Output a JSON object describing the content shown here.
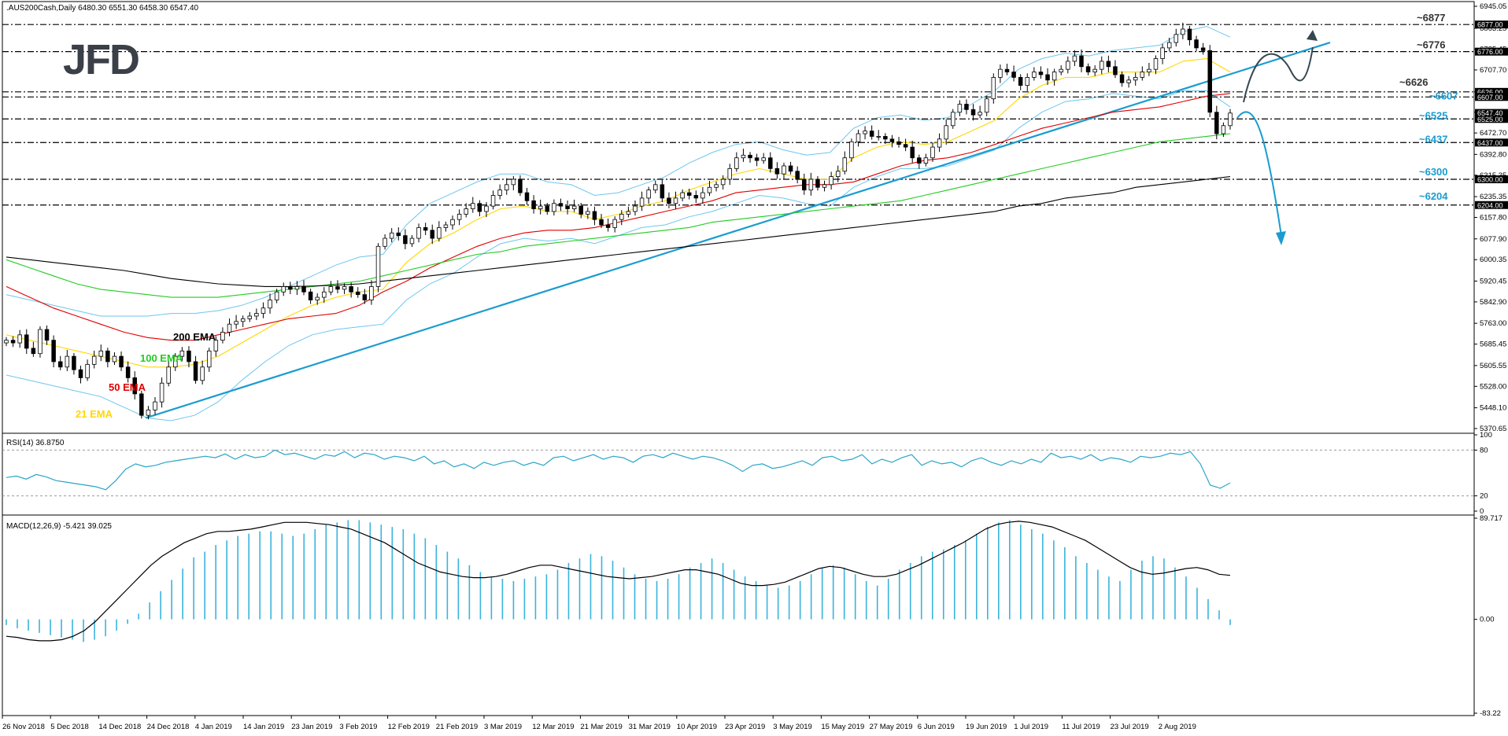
{
  "header": {
    "symbol_line": ".AUS200Cash,Daily  6480.30 6551.30 6458.30 6547.40",
    "logo_text": "JFD"
  },
  "colors": {
    "background": "#ffffff",
    "bull_candle": "#ffffff",
    "bear_candle": "#000000",
    "candle_outline": "#000000",
    "ema21": "#ffd800",
    "ema50": "#e00000",
    "ema100": "#22cc22",
    "ema200": "#000000",
    "bollinger": "#6ec6ee",
    "trendline": "#1a9cd0",
    "level_line": "#000000",
    "annotation_blue": "#1a9cd0",
    "annotation_dark": "#333333",
    "rsi_line": "#2aa5c8",
    "macd_hist": "#3ab3dd",
    "macd_signal": "#000000",
    "logo": "#3a3f48"
  },
  "chart_data": [
    {
      "type": "line",
      "title": ".AUS200Cash,Daily",
      "ohlc_last": {
        "open": 6480.3,
        "high": 6551.3,
        "low": 6458.3,
        "close": 6547.4
      },
      "ylim": [
        5370.65,
        6945.05
      ],
      "y_ticks": [
        "6945.05",
        "6863.25",
        "6785.45",
        "6707.70",
        "6626.00",
        "6550.15",
        "6472.70",
        "6392.80",
        "6315.35",
        "6235.35",
        "6157.80",
        "6077.90",
        "6000.35",
        "5920.45",
        "5842.90",
        "5763.00",
        "5685.45",
        "5605.55",
        "5528.00",
        "5448.10",
        "5370.65"
      ],
      "x_ticks": [
        "26 Nov 2018",
        "5 Dec 2018",
        "14 Dec 2018",
        "24 Dec 2018",
        "4 Jan 2019",
        "14 Jan 2019",
        "23 Jan 2019",
        "3 Feb 2019",
        "12 Feb 2019",
        "21 Feb 2019",
        "3 Mar 2019",
        "12 Mar 2019",
        "21 Mar 2019",
        "31 Mar 2019",
        "10 Apr 2019",
        "23 Apr 2019",
        "3 May 2019",
        "15 May 2019",
        "27 May 2019",
        "6 Jun 2019",
        "19 Jun 2019",
        "1 Jul 2019",
        "11 Jul 2019",
        "23 Jul 2019",
        "2 Aug 2019"
      ],
      "candles_close_path": [
        5700,
        5690,
        5720,
        5670,
        5650,
        5740,
        5700,
        5620,
        5600,
        5640,
        5590,
        5560,
        5610,
        5640,
        5660,
        5620,
        5640,
        5600,
        5560,
        5500,
        5420,
        5440,
        5470,
        5540,
        5600,
        5640,
        5660,
        5620,
        5550,
        5600,
        5660,
        5700,
        5730,
        5760,
        5770,
        5780,
        5790,
        5800,
        5820,
        5850,
        5880,
        5900,
        5890,
        5900,
        5880,
        5850,
        5860,
        5880,
        5900,
        5890,
        5900,
        5880,
        5870,
        5850,
        5900,
        6050,
        6080,
        6100,
        6090,
        6060,
        6080,
        6120,
        6110,
        6080,
        6120,
        6130,
        6150,
        6170,
        6190,
        6210,
        6180,
        6200,
        6240,
        6260,
        6280,
        6300,
        6250,
        6220,
        6190,
        6200,
        6180,
        6210,
        6200,
        6190,
        6200,
        6170,
        6180,
        6150,
        6130,
        6120,
        6150,
        6170,
        6180,
        6200,
        6230,
        6260,
        6280,
        6230,
        6210,
        6230,
        6250,
        6240,
        6230,
        6250,
        6270,
        6280,
        6300,
        6340,
        6380,
        6390,
        6380,
        6370,
        6380,
        6340,
        6320,
        6350,
        6330,
        6300,
        6260,
        6300,
        6270,
        6280,
        6310,
        6330,
        6380,
        6440,
        6470,
        6480,
        6460,
        6460,
        6450,
        6440,
        6430,
        6420,
        6380,
        6360,
        6380,
        6420,
        6450,
        6500,
        6550,
        6580,
        6560,
        6540,
        6550,
        6600,
        6680,
        6710,
        6700,
        6680,
        6650,
        6680,
        6700,
        6690,
        6670,
        6700,
        6710,
        6740,
        6760,
        6720,
        6700,
        6710,
        6740,
        6720,
        6690,
        6660,
        6670,
        6680,
        6700,
        6710,
        6750,
        6790,
        6810,
        6840,
        6860,
        6820,
        6790,
        6780,
        6550,
        6470,
        6500,
        6547
      ],
      "levels": [
        {
          "value": 6877,
          "label": "~6877",
          "tag": "6877.00",
          "color": "annotation_dark"
        },
        {
          "value": 6776,
          "label": "~6776",
          "tag": "6776.00",
          "color": "annotation_dark"
        },
        {
          "value": 6626,
          "label": "~6626",
          "tag": "6626.00",
          "color": "annotation_dark"
        },
        {
          "value": 6607,
          "label": "~6607",
          "tag": "6607.00",
          "color": "annotation_blue"
        },
        {
          "value": 6525,
          "label": "~6525",
          "tag": "6525.00",
          "color": "annotation_blue"
        },
        {
          "value": 6437,
          "label": "~6437",
          "tag": "6437.00",
          "color": "annotation_blue"
        },
        {
          "value": 6300,
          "label": "~6300",
          "tag": "6300.00",
          "color": "annotation_blue"
        },
        {
          "value": 6204,
          "label": "~6204",
          "tag": "6204.00",
          "color": "annotation_blue"
        }
      ],
      "current_price_tag": "6547.40",
      "series": [
        {
          "name": "21 EMA",
          "color": "ema21",
          "values": [
            5720,
            5700,
            5680,
            5660,
            5640,
            5620,
            5600,
            5600,
            5610,
            5640,
            5690,
            5740,
            5790,
            5830,
            5860,
            5880,
            5890,
            5990,
            6060,
            6100,
            6150,
            6190,
            6200,
            6180,
            6180,
            6150,
            6170,
            6200,
            6220,
            6260,
            6290,
            6320,
            6340,
            6320,
            6300,
            6300,
            6380,
            6420,
            6440,
            6430,
            6440,
            6480,
            6520,
            6600,
            6650,
            6680,
            6680,
            6700,
            6700,
            6700,
            6740,
            6750,
            6700
          ]
        },
        {
          "name": "50 EMA",
          "color": "ema50",
          "values": [
            5900,
            5860,
            5820,
            5790,
            5760,
            5730,
            5710,
            5700,
            5700,
            5720,
            5740,
            5760,
            5780,
            5790,
            5800,
            5830,
            5880,
            5920,
            5970,
            6010,
            6050,
            6080,
            6100,
            6110,
            6110,
            6120,
            6140,
            6160,
            6180,
            6200,
            6220,
            6250,
            6260,
            6270,
            6280,
            6280,
            6290,
            6320,
            6350,
            6370,
            6380,
            6400,
            6430,
            6460,
            6490,
            6510,
            6530,
            6550,
            6560,
            6570,
            6590,
            6610,
            6620
          ]
        },
        {
          "name": "100 EMA",
          "color": "ema100",
          "values": [
            6000,
            5970,
            5940,
            5910,
            5890,
            5880,
            5870,
            5860,
            5860,
            5860,
            5870,
            5880,
            5890,
            5900,
            5910,
            5920,
            5940,
            5960,
            5980,
            6000,
            6020,
            6030,
            6050,
            6060,
            6070,
            6080,
            6090,
            6100,
            6110,
            6120,
            6140,
            6150,
            6160,
            6170,
            6180,
            6190,
            6200,
            6210,
            6220,
            6240,
            6260,
            6280,
            6300,
            6320,
            6340,
            6360,
            6380,
            6400,
            6420,
            6440,
            6450,
            6460,
            6470
          ]
        },
        {
          "name": "200 EMA",
          "color": "ema200",
          "values": [
            6010,
            6000,
            5990,
            5980,
            5970,
            5960,
            5945,
            5930,
            5920,
            5910,
            5905,
            5900,
            5900,
            5902,
            5905,
            5910,
            5920,
            5930,
            5940,
            5950,
            5960,
            5970,
            5980,
            5990,
            6000,
            6010,
            6020,
            6030,
            6040,
            6050,
            6060,
            6070,
            6080,
            6090,
            6100,
            6110,
            6120,
            6130,
            6140,
            6150,
            6160,
            6170,
            6180,
            6200,
            6210,
            6230,
            6240,
            6250,
            6270,
            6280,
            6290,
            6300,
            6310
          ]
        }
      ],
      "trendline": {
        "from": {
          "x": "21 Dec 2018",
          "y": 5410
        },
        "to": {
          "x": "Aug 2019",
          "y": 6640
        }
      },
      "ema_labels": [
        "200 EMA",
        "100 EMA",
        "50 EMA",
        "21 EMA"
      ]
    },
    {
      "type": "line",
      "title": "RSI(14) 36.8750",
      "ylim": [
        0,
        100
      ],
      "y_ticks": [
        "100",
        "80",
        "20",
        "0"
      ],
      "levels": [
        80,
        20
      ],
      "series": [
        {
          "name": "RSI(14)",
          "values": [
            44,
            46,
            42,
            48,
            45,
            40,
            38,
            36,
            34,
            32,
            28,
            40,
            55,
            62,
            58,
            60,
            64,
            66,
            68,
            70,
            72,
            70,
            75,
            68,
            74,
            70,
            72,
            80,
            74,
            76,
            72,
            68,
            74,
            72,
            78,
            70,
            76,
            74,
            68,
            72,
            70,
            66,
            72,
            62,
            66,
            58,
            62,
            56,
            64,
            60,
            64,
            66,
            60,
            64,
            60,
            70,
            72,
            66,
            70,
            74,
            68,
            72,
            70,
            64,
            72,
            74,
            70,
            76,
            72,
            68,
            72,
            70,
            66,
            60,
            52,
            60,
            62,
            56,
            58,
            62,
            66,
            60,
            70,
            72,
            66,
            68,
            74,
            62,
            68,
            64,
            70,
            74,
            60,
            66,
            62,
            64,
            58,
            66,
            70,
            64,
            60,
            66,
            62,
            68,
            64,
            76,
            70,
            72,
            68,
            74,
            66,
            70,
            68,
            64,
            72,
            70,
            72,
            76,
            74,
            78,
            62,
            34,
            30,
            37
          ]
        }
      ]
    },
    {
      "type": "bar",
      "title": "MACD(12,26,9) -5.421 39.025",
      "ylim": [
        -83.22,
        89.717
      ],
      "y_ticks": [
        "89.717",
        "0.00",
        "-83.22"
      ],
      "series": [
        {
          "name": "MACD histogram",
          "values": [
            -5,
            -8,
            -10,
            -12,
            -14,
            -16,
            -18,
            -20,
            -18,
            -15,
            -10,
            -4,
            5,
            15,
            25,
            35,
            45,
            55,
            60,
            66,
            70,
            74,
            76,
            78,
            78,
            76,
            74,
            76,
            80,
            84,
            86,
            88,
            88,
            86,
            84,
            82,
            80,
            76,
            72,
            66,
            60,
            54,
            48,
            42,
            38,
            36,
            34,
            36,
            38,
            40,
            44,
            50,
            54,
            58,
            56,
            52,
            46,
            40,
            36,
            34,
            36,
            40,
            46,
            50,
            54,
            50,
            44,
            38,
            34,
            30,
            28,
            30,
            34,
            40,
            46,
            48,
            46,
            40,
            34,
            30,
            36,
            44,
            50,
            56,
            60,
            62,
            66,
            70,
            76,
            82,
            86,
            88,
            84,
            80,
            76,
            70,
            64,
            56,
            50,
            44,
            38,
            34,
            44,
            52,
            56,
            54,
            46,
            38,
            28,
            18,
            8,
            -5
          ]
        },
        {
          "name": "Signal",
          "values": [
            -15,
            -16,
            -18,
            -19,
            -19,
            -18,
            -15,
            -10,
            -2,
            8,
            18,
            28,
            38,
            48,
            56,
            62,
            68,
            72,
            76,
            78,
            78,
            79,
            80,
            82,
            84,
            86,
            86,
            86,
            85,
            84,
            82,
            80,
            76,
            72,
            68,
            62,
            56,
            50,
            46,
            42,
            40,
            38,
            37,
            37,
            38,
            40,
            43,
            46,
            48,
            48,
            46,
            44,
            42,
            40,
            38,
            37,
            36,
            37,
            38,
            40,
            42,
            44,
            44,
            42,
            40,
            36,
            32,
            30,
            30,
            31,
            33,
            37,
            41,
            45,
            47,
            46,
            43,
            40,
            38,
            38,
            40,
            44,
            48,
            53,
            58,
            63,
            68,
            74,
            80,
            84,
            86,
            87,
            86,
            84,
            82,
            78,
            74,
            70,
            64,
            58,
            52,
            46,
            42,
            40,
            41,
            43,
            45,
            46,
            44,
            40,
            39
          ]
        }
      ]
    }
  ]
}
